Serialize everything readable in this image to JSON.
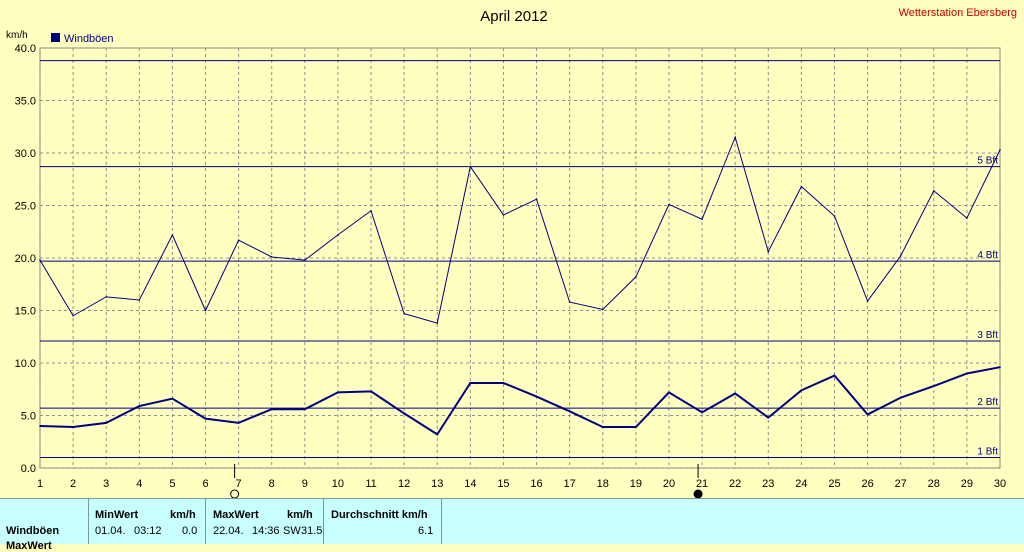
{
  "station": "Wetterstation Ebersberg",
  "unit_label": "km/h",
  "chart_data": {
    "type": "line",
    "title": "April 2012",
    "ylabel": "km/h",
    "ylim": [
      0,
      40
    ],
    "xlim": [
      1,
      30
    ],
    "grid": true,
    "legend": "top-left",
    "y_ticks": [
      "0.0",
      "5.0",
      "10.0",
      "15.0",
      "20.0",
      "25.0",
      "30.0",
      "35.0",
      "40.0"
    ],
    "x": [
      1,
      2,
      3,
      4,
      5,
      6,
      7,
      8,
      9,
      10,
      11,
      12,
      13,
      14,
      15,
      16,
      17,
      18,
      19,
      20,
      21,
      22,
      23,
      24,
      25,
      26,
      27,
      28,
      29,
      30
    ],
    "series": [
      {
        "name": "Windböen",
        "color": "#000080",
        "values": [
          19.8,
          14.5,
          16.3,
          16.0,
          22.2,
          15.0,
          21.7,
          20.1,
          19.8,
          22.2,
          24.5,
          14.7,
          13.8,
          28.7,
          24.1,
          25.6,
          15.8,
          15.1,
          18.2,
          25.1,
          23.7,
          31.5,
          20.6,
          26.8,
          24.0,
          15.9,
          20.2,
          26.4,
          23.8,
          30.3
        ]
      },
      {
        "values": [
          4.0,
          3.9,
          4.3,
          5.9,
          6.6,
          4.7,
          4.3,
          5.6,
          5.6,
          7.2,
          7.3,
          5.2,
          3.2,
          8.1,
          8.1,
          6.8,
          5.4,
          3.9,
          3.9,
          7.2,
          5.3,
          7.1,
          4.8,
          7.4,
          8.8,
          5.1,
          6.7,
          7.8,
          9.0,
          9.6
        ]
      }
    ],
    "reference_lines": [
      {
        "label": "1 Bft",
        "value": 1.0
      },
      {
        "label": "2 Bft",
        "value": 5.7
      },
      {
        "label": "3 Bft",
        "value": 12.1
      },
      {
        "label": "4 Bft",
        "value": 19.7
      },
      {
        "label": "5 Bft",
        "value": 28.7
      },
      {
        "label": "",
        "value": 38.8
      }
    ],
    "markers": [
      {
        "day": 7,
        "symbol": "full-moon-icon"
      },
      {
        "day": 21,
        "symbol": "new-moon-icon"
      }
    ]
  },
  "stats": {
    "row_labels": [
      "Windböen",
      "MaxWert"
    ],
    "min_header": "MinWert",
    "min_unit": "km/h",
    "min_date": "01.04.",
    "min_time": "03:12",
    "min_value": "0.0",
    "max_header": "MaxWert",
    "max_unit": "km/h",
    "max_date": "22.04.",
    "max_time": "14:36",
    "max_dir": "SW",
    "max_value": "31.5",
    "avg_header": "Durchschnitt km/h",
    "avg_value": "6.1"
  }
}
